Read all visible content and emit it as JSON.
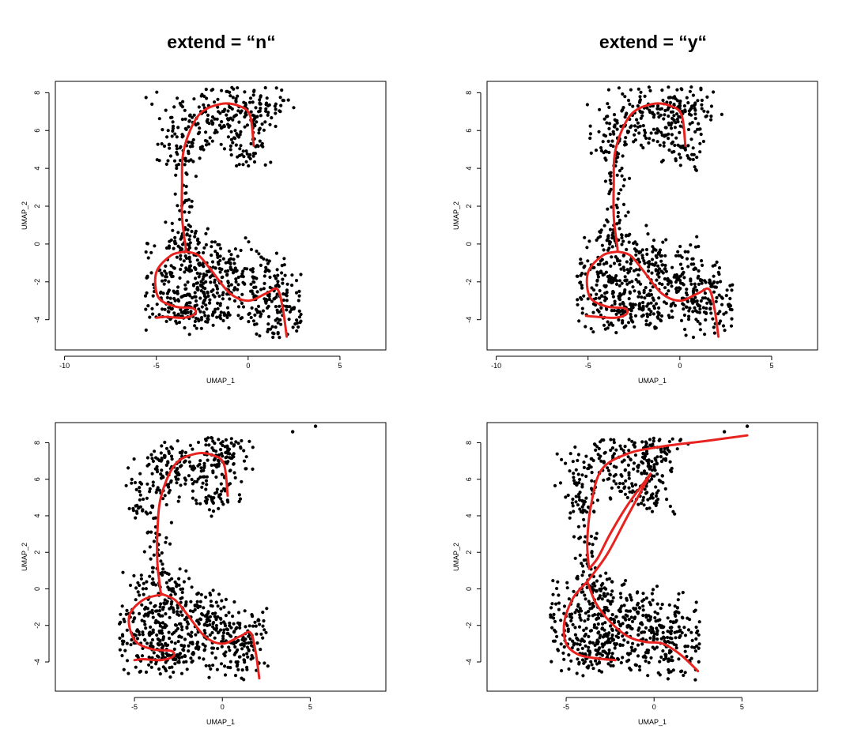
{
  "titles": {
    "left": "extend = “n“",
    "right": "extend = “y“"
  },
  "colors": {
    "points": "#000000",
    "curve": "#e8231f"
  },
  "chart_data": [
    {
      "type": "scatter",
      "title": "extend = “n“",
      "xlabel": "UMAP_1",
      "ylabel": "UMAP_2",
      "xlim": [
        -10.5,
        7.5
      ],
      "ylim": [
        -5.6,
        8.6
      ],
      "xticks": [
        -10,
        -5,
        0,
        5
      ],
      "yticks": [
        -4,
        -2,
        0,
        2,
        4,
        6,
        8
      ],
      "outliers": [],
      "curves": [
        {
          "x": [
            0.3,
            0.1,
            -0.5,
            -1.5,
            -2.7,
            -3.5,
            -3.6,
            -3.6,
            -3.5,
            -3.4,
            -3.4
          ],
          "y": [
            5.2,
            6.8,
            7.3,
            7.4,
            6.8,
            5.0,
            3.0,
            1.5,
            0.5,
            -0.2,
            -0.4
          ]
        },
        {
          "x": [
            -3.4,
            -4.2,
            -5.0,
            -4.9,
            -4.0,
            -3.0,
            -2.9,
            -3.5,
            -4.5,
            -5.0
          ],
          "y": [
            -0.4,
            -0.6,
            -1.5,
            -2.8,
            -3.3,
            -3.4,
            -3.7,
            -3.9,
            -3.85,
            -3.9
          ]
        },
        {
          "x": [
            -3.4,
            -2.7,
            -2.0,
            -1.0,
            0.0,
            1.0,
            1.6,
            1.9,
            2.1
          ],
          "y": [
            -0.4,
            -0.6,
            -1.4,
            -2.6,
            -3.0,
            -2.6,
            -2.4,
            -3.5,
            -4.9
          ]
        }
      ]
    },
    {
      "type": "scatter",
      "title": "extend = “y“",
      "xlabel": "UMAP_1",
      "ylabel": "UMAP_2",
      "xlim": [
        -10.5,
        7.5
      ],
      "ylim": [
        -5.6,
        8.6
      ],
      "xticks": [
        -10,
        -5,
        0,
        5
      ],
      "yticks": [
        -4,
        -2,
        0,
        2,
        4,
        6,
        8
      ],
      "outliers": [],
      "curves": [
        {
          "x": [
            0.3,
            0.1,
            -0.5,
            -1.5,
            -2.7,
            -3.5,
            -3.6,
            -3.6,
            -3.5,
            -3.4,
            -3.4
          ],
          "y": [
            5.2,
            6.8,
            7.3,
            7.4,
            6.8,
            5.0,
            3.0,
            1.5,
            0.5,
            -0.2,
            -0.4
          ]
        },
        {
          "x": [
            -3.4,
            -4.2,
            -5.0,
            -4.9,
            -4.0,
            -3.0,
            -2.9,
            -3.5,
            -4.5,
            -5.1
          ],
          "y": [
            -0.4,
            -0.6,
            -1.5,
            -2.8,
            -3.3,
            -3.4,
            -3.7,
            -3.9,
            -3.85,
            -3.8
          ]
        },
        {
          "x": [
            -3.4,
            -2.7,
            -2.0,
            -1.0,
            0.0,
            1.0,
            1.6,
            1.9,
            2.1
          ],
          "y": [
            -0.4,
            -0.6,
            -1.4,
            -2.6,
            -3.0,
            -2.6,
            -2.4,
            -3.5,
            -4.9
          ]
        }
      ]
    },
    {
      "type": "scatter",
      "title": "",
      "xlabel": "UMAP_1",
      "ylabel": "UMAP_2",
      "xlim": [
        -9.5,
        9.3
      ],
      "ylim": [
        -5.6,
        9.1
      ],
      "xticks": [
        -5,
        0,
        5
      ],
      "yticks": [
        -4,
        -2,
        0,
        2,
        4,
        6,
        8
      ],
      "outliers": [
        {
          "x": 4.0,
          "y": 8.6
        },
        {
          "x": 5.3,
          "y": 8.9
        }
      ],
      "curves": [
        {
          "x": [
            0.3,
            0.1,
            -0.5,
            -1.5,
            -2.7,
            -3.5,
            -3.7,
            -3.7,
            -3.6,
            -3.5,
            -3.4
          ],
          "y": [
            5.1,
            6.8,
            7.3,
            7.4,
            6.8,
            5.0,
            3.0,
            1.5,
            0.5,
            -0.2,
            -0.3
          ]
        },
        {
          "x": [
            -3.4,
            -4.5,
            -5.3,
            -5.0,
            -4.0,
            -2.9,
            -2.8,
            -3.5,
            -4.5,
            -5.0
          ],
          "y": [
            -0.3,
            -0.6,
            -1.5,
            -2.8,
            -3.3,
            -3.4,
            -3.7,
            -3.9,
            -3.85,
            -3.9
          ]
        },
        {
          "x": [
            -3.4,
            -2.7,
            -2.0,
            -1.0,
            0.0,
            1.0,
            1.6,
            1.9,
            2.1
          ],
          "y": [
            -0.3,
            -0.6,
            -1.4,
            -2.6,
            -3.0,
            -2.6,
            -2.4,
            -3.5,
            -4.9
          ]
        }
      ]
    },
    {
      "type": "scatter",
      "title": "",
      "xlabel": "UMAP_1",
      "ylabel": "UMAP_2",
      "xlim": [
        -9.5,
        9.3
      ],
      "ylim": [
        -5.6,
        9.1
      ],
      "xticks": [
        -5,
        0,
        5
      ],
      "yticks": [
        -4,
        -2,
        0,
        2,
        4,
        6,
        8
      ],
      "outliers": [
        {
          "x": 4.0,
          "y": 8.6
        },
        {
          "x": 5.3,
          "y": 8.9
        }
      ],
      "curves": [
        {
          "x": [
            5.3,
            3.0,
            0.5,
            -1.5,
            -3.0,
            -3.6,
            -3.8,
            -3.7
          ],
          "y": [
            8.4,
            8.1,
            7.8,
            7.4,
            6.5,
            4.5,
            2.5,
            1.1
          ]
        },
        {
          "x": [
            -3.7,
            -3.2,
            -2.5,
            -1.5,
            -0.2
          ],
          "y": [
            1.1,
            1.7,
            3.0,
            4.6,
            6.3
          ]
        },
        {
          "x": [
            -0.2,
            -1.5,
            -2.6,
            -3.4,
            -3.8
          ],
          "y": [
            6.3,
            4.0,
            2.0,
            0.9,
            0.4
          ]
        },
        {
          "x": [
            -3.8,
            -4.6,
            -5.1,
            -5.0,
            -4.3,
            -3.3,
            -2.2
          ],
          "y": [
            0.4,
            -0.5,
            -1.8,
            -3.0,
            -3.6,
            -3.8,
            -3.9
          ]
        },
        {
          "x": [
            -3.8,
            -3.3,
            -2.5,
            -1.5,
            -0.5,
            0.5,
            1.5,
            2.5
          ],
          "y": [
            0.4,
            -0.8,
            -1.8,
            -2.6,
            -2.9,
            -3.0,
            -3.6,
            -4.5
          ]
        }
      ]
    }
  ]
}
